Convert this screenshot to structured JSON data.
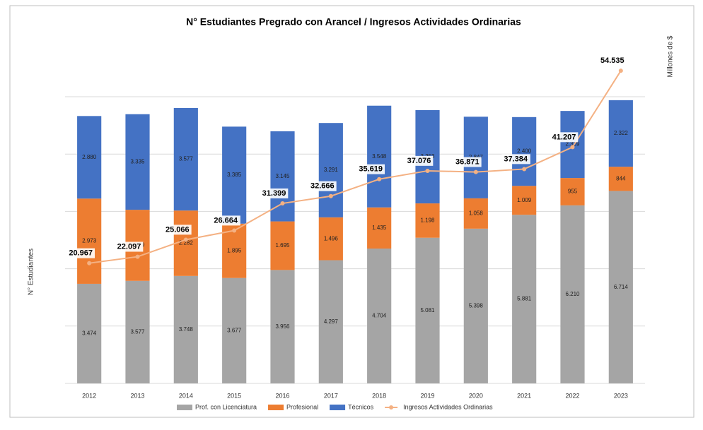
{
  "chart_data": {
    "type": "bar",
    "stacked": true,
    "title": "N° Estudiantes Pregrado con Arancel / Ingresos Actividades Ordinarias",
    "y_label": "N° Estudiantes",
    "y2_label": "Millones de $",
    "categories": [
      "2012",
      "2013",
      "2014",
      "2015",
      "2016",
      "2017",
      "2018",
      "2019",
      "2020",
      "2021",
      "2022",
      "2023"
    ],
    "series": [
      {
        "name": "Prof. con Licenciatura",
        "color": "#a5a5a5",
        "values": [
          3474,
          3577,
          3748,
          3677,
          3956,
          4297,
          4704,
          5081,
          5398,
          5881,
          6210,
          6714
        ],
        "value_labels": [
          "3.474",
          "3.577",
          "3.748",
          "3.677",
          "3.956",
          "4.297",
          "4.704",
          "5.081",
          "5.398",
          "5.881",
          "6.210",
          "6.714"
        ]
      },
      {
        "name": "Profesional",
        "color": "#ed7d31",
        "values": [
          2973,
          2479,
          2282,
          1895,
          1695,
          1496,
          1435,
          1198,
          1058,
          1009,
          955,
          844
        ],
        "value_labels": [
          "2.973",
          "2.479",
          "2.282",
          "1.895",
          "1.695",
          "1.496",
          "1.435",
          "1.198",
          "1.058",
          "1.009",
          "955",
          "844"
        ]
      },
      {
        "name": "Técnicos",
        "color": "#4472c4",
        "values": [
          2880,
          3335,
          3577,
          3385,
          3145,
          3291,
          3548,
          3253,
          2847,
          2400,
          2339,
          2322
        ],
        "value_labels": [
          "2.880",
          "3.335",
          "3.577",
          "3.385",
          "3.145",
          "3.291",
          "3.548",
          "3.253",
          "2.847",
          "2.400",
          "2.339",
          "2.322"
        ]
      },
      {
        "name": "Ingresos Actividades Ordinarias",
        "color": "#f4b183",
        "type": "line",
        "axis": "y2",
        "values": [
          20967,
          22097,
          25066,
          26664,
          31399,
          32666,
          35619,
          37076,
          36871,
          37384,
          41207,
          54535
        ],
        "value_labels": [
          "20.967",
          "22.097",
          "25.066",
          "26.664",
          "31.399",
          "32.666",
          "35.619",
          "37.076",
          "36.871",
          "37.384",
          "41.207",
          "54.535"
        ]
      }
    ],
    "ylim": [
      0,
      10000
    ],
    "yticks": [
      0,
      2000,
      4000,
      6000,
      8000,
      10000
    ],
    "y2lim": [
      0,
      50000
    ],
    "grid": true,
    "legend": "bottom"
  }
}
